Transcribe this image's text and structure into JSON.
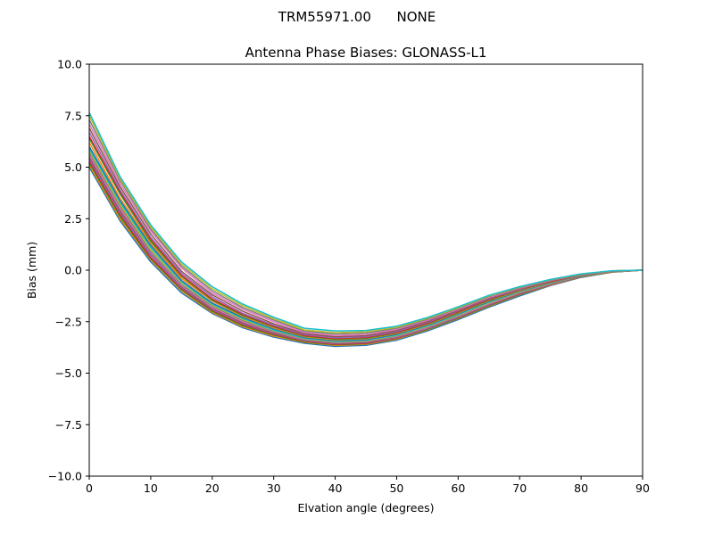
{
  "figure": {
    "suptitle": "TRM55971.00      NONE"
  },
  "chart_data": {
    "type": "line",
    "title": "Antenna Phase Biases: GLONASS-L1",
    "xlabel": "Elvation angle (degrees)",
    "ylabel": "Bias (mm)",
    "xlim": [
      0,
      90
    ],
    "ylim": [
      -10,
      10
    ],
    "xticks": [
      0,
      10,
      20,
      30,
      40,
      50,
      60,
      70,
      80,
      90
    ],
    "xtick_labels": [
      "0",
      "10",
      "20",
      "30",
      "40",
      "50",
      "60",
      "70",
      "80",
      "90"
    ],
    "yticks": [
      -10,
      -7.5,
      -5,
      -2.5,
      0,
      2.5,
      5,
      7.5,
      10
    ],
    "ytick_labels": [
      "−10.0",
      "−7.5",
      "−5.0",
      "−2.5",
      "0.0",
      "2.5",
      "5.0",
      "7.5",
      "10.0"
    ],
    "grid": false,
    "legend": "none",
    "colors": [
      "#1f77b4",
      "#ff7f0e",
      "#2ca02c",
      "#d62728",
      "#9467bd",
      "#8c564b",
      "#e377c2",
      "#7f7f7f",
      "#bcbd22",
      "#17becf"
    ],
    "x": [
      0,
      5,
      10,
      15,
      20,
      25,
      30,
      35,
      40,
      45,
      50,
      55,
      60,
      65,
      70,
      75,
      80,
      85,
      90
    ],
    "series": [
      {
        "values": [
          5.0,
          2.4,
          0.4,
          -1.1,
          -2.1,
          -2.8,
          -3.25,
          -3.55,
          -3.7,
          -3.65,
          -3.4,
          -2.95,
          -2.4,
          -1.8,
          -1.25,
          -0.75,
          -0.35,
          -0.1,
          0.0
        ]
      },
      {
        "values": [
          5.1,
          2.5,
          0.5,
          -1.0,
          -2.05,
          -2.75,
          -3.2,
          -3.5,
          -3.65,
          -3.6,
          -3.35,
          -2.9,
          -2.35,
          -1.75,
          -1.2,
          -0.72,
          -0.33,
          -0.09,
          0.0
        ]
      },
      {
        "values": [
          5.2,
          2.6,
          0.55,
          -0.95,
          -2.0,
          -2.7,
          -3.15,
          -3.48,
          -3.62,
          -3.57,
          -3.32,
          -2.88,
          -2.33,
          -1.73,
          -1.18,
          -0.7,
          -0.32,
          -0.09,
          0.0
        ]
      },
      {
        "values": [
          5.3,
          2.7,
          0.6,
          -0.9,
          -1.95,
          -2.65,
          -3.12,
          -3.45,
          -3.6,
          -3.55,
          -3.3,
          -2.85,
          -2.3,
          -1.7,
          -1.16,
          -0.69,
          -0.31,
          -0.08,
          0.0
        ]
      },
      {
        "values": [
          5.4,
          2.8,
          0.7,
          -0.85,
          -1.9,
          -2.6,
          -3.08,
          -3.42,
          -3.57,
          -3.52,
          -3.28,
          -2.83,
          -2.28,
          -1.68,
          -1.14,
          -0.68,
          -0.3,
          -0.08,
          0.0
        ]
      },
      {
        "values": [
          5.5,
          2.9,
          0.8,
          -0.8,
          -1.85,
          -2.55,
          -3.05,
          -3.4,
          -3.55,
          -3.5,
          -3.25,
          -2.8,
          -2.25,
          -1.65,
          -1.12,
          -0.67,
          -0.3,
          -0.08,
          0.0
        ]
      },
      {
        "values": [
          5.6,
          3.0,
          0.85,
          -0.75,
          -1.8,
          -2.5,
          -3.0,
          -3.37,
          -3.52,
          -3.47,
          -3.22,
          -2.78,
          -2.23,
          -1.63,
          -1.1,
          -0.66,
          -0.29,
          -0.07,
          0.0
        ]
      },
      {
        "values": [
          5.7,
          3.1,
          0.9,
          -0.7,
          -1.75,
          -2.45,
          -2.97,
          -3.35,
          -3.5,
          -3.45,
          -3.2,
          -2.75,
          -2.2,
          -1.6,
          -1.08,
          -0.64,
          -0.28,
          -0.07,
          0.0
        ]
      },
      {
        "values": [
          5.8,
          3.2,
          1.0,
          -0.6,
          -1.7,
          -2.4,
          -2.93,
          -3.32,
          -3.47,
          -3.42,
          -3.17,
          -2.73,
          -2.18,
          -1.58,
          -1.06,
          -0.63,
          -0.27,
          -0.07,
          0.0
        ]
      },
      {
        "values": [
          5.9,
          3.3,
          1.1,
          -0.55,
          -1.65,
          -2.35,
          -2.9,
          -3.3,
          -3.45,
          -3.4,
          -3.15,
          -2.7,
          -2.15,
          -1.55,
          -1.04,
          -0.62,
          -0.27,
          -0.06,
          0.0
        ]
      },
      {
        "values": [
          6.0,
          3.4,
          1.2,
          -0.5,
          -1.6,
          -2.3,
          -2.85,
          -3.27,
          -3.42,
          -3.37,
          -3.12,
          -2.67,
          -2.12,
          -1.52,
          -1.02,
          -0.6,
          -0.26,
          -0.06,
          0.0
        ]
      },
      {
        "values": [
          6.2,
          3.5,
          1.3,
          -0.4,
          -1.5,
          -2.25,
          -2.8,
          -3.23,
          -3.38,
          -3.33,
          -3.08,
          -2.63,
          -2.08,
          -1.48,
          -0.99,
          -0.58,
          -0.25,
          -0.06,
          0.0
        ]
      },
      {
        "values": [
          6.4,
          3.7,
          1.4,
          -0.3,
          -1.45,
          -2.2,
          -2.75,
          -3.2,
          -3.35,
          -3.3,
          -3.05,
          -2.6,
          -2.05,
          -1.45,
          -0.96,
          -0.56,
          -0.24,
          -0.05,
          0.0
        ]
      },
      {
        "values": [
          6.5,
          3.8,
          1.5,
          -0.25,
          -1.4,
          -2.15,
          -2.72,
          -3.17,
          -3.32,
          -3.27,
          -3.02,
          -2.57,
          -2.02,
          -1.42,
          -0.94,
          -0.55,
          -0.23,
          -0.05,
          0.0
        ]
      },
      {
        "values": [
          6.7,
          3.9,
          1.6,
          -0.15,
          -1.3,
          -2.1,
          -2.67,
          -3.13,
          -3.28,
          -3.23,
          -2.98,
          -2.53,
          -1.98,
          -1.38,
          -0.92,
          -0.53,
          -0.22,
          -0.05,
          0.0
        ]
      },
      {
        "values": [
          6.9,
          4.05,
          1.75,
          -0.05,
          -1.2,
          -2.0,
          -2.6,
          -3.08,
          -3.23,
          -3.18,
          -2.93,
          -2.48,
          -1.95,
          -1.35,
          -0.9,
          -0.52,
          -0.22,
          -0.04,
          0.0
        ]
      },
      {
        "values": [
          7.1,
          4.2,
          1.9,
          0.1,
          -1.1,
          -1.9,
          -2.5,
          -3.02,
          -3.17,
          -3.12,
          -2.87,
          -2.43,
          -1.9,
          -1.32,
          -0.88,
          -0.5,
          -0.21,
          -0.04,
          0.0
        ]
      },
      {
        "values": [
          7.3,
          4.35,
          2.0,
          0.2,
          -1.0,
          -1.82,
          -2.42,
          -2.96,
          -3.1,
          -3.05,
          -2.82,
          -2.38,
          -1.86,
          -1.28,
          -0.85,
          -0.48,
          -0.2,
          -0.03,
          0.0
        ]
      },
      {
        "values": [
          7.5,
          4.45,
          2.1,
          0.3,
          -0.9,
          -1.73,
          -2.35,
          -2.9,
          -3.03,
          -2.99,
          -2.77,
          -2.34,
          -1.82,
          -1.25,
          -0.82,
          -0.46,
          -0.19,
          -0.03,
          0.0
        ]
      },
      {
        "values": [
          7.65,
          4.55,
          2.2,
          0.4,
          -0.8,
          -1.65,
          -2.28,
          -2.82,
          -2.95,
          -2.93,
          -2.72,
          -2.3,
          -1.78,
          -1.22,
          -0.8,
          -0.45,
          -0.18,
          -0.03,
          0.0
        ]
      }
    ]
  }
}
